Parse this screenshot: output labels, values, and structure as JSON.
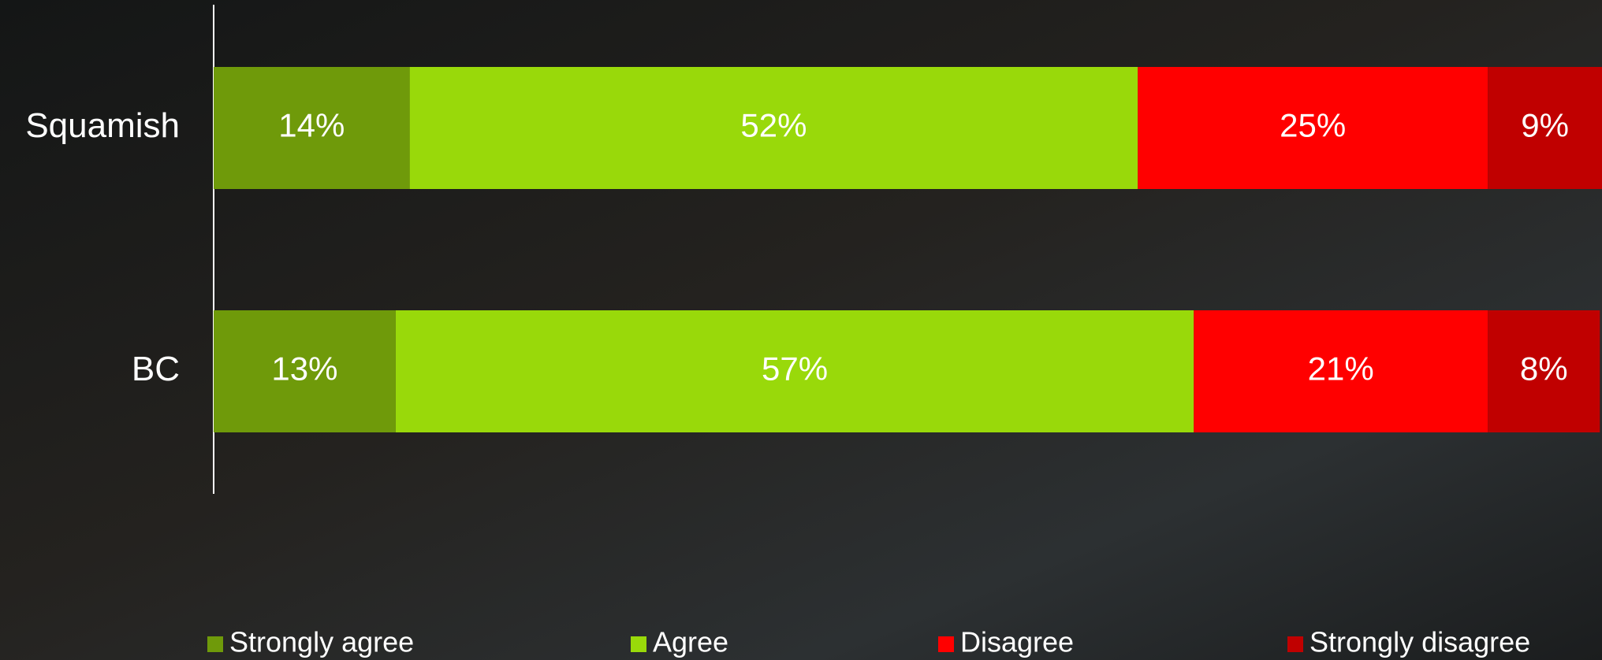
{
  "chart_data": {
    "type": "stacked_barh",
    "categories": [
      "Squamish",
      "BC"
    ],
    "series": [
      {
        "name": "Strongly agree",
        "color": "#6f9a0a",
        "values": [
          14,
          13
        ],
        "value_labels": [
          "14%",
          "13%"
        ]
      },
      {
        "name": "Agree",
        "color": "#99d90a",
        "values": [
          52,
          57
        ],
        "value_labels": [
          "52%",
          "57%"
        ]
      },
      {
        "name": "Disagree",
        "color": "#ff0000",
        "values": [
          25,
          21
        ],
        "value_labels": [
          "25%",
          "21%"
        ]
      },
      {
        "name": "Strongly disagree",
        "color": "#c00000",
        "values": [
          9,
          8
        ],
        "value_labels": [
          "9%",
          "8%"
        ]
      }
    ],
    "xlim": [
      0,
      100
    ],
    "legend": "bottom"
  }
}
